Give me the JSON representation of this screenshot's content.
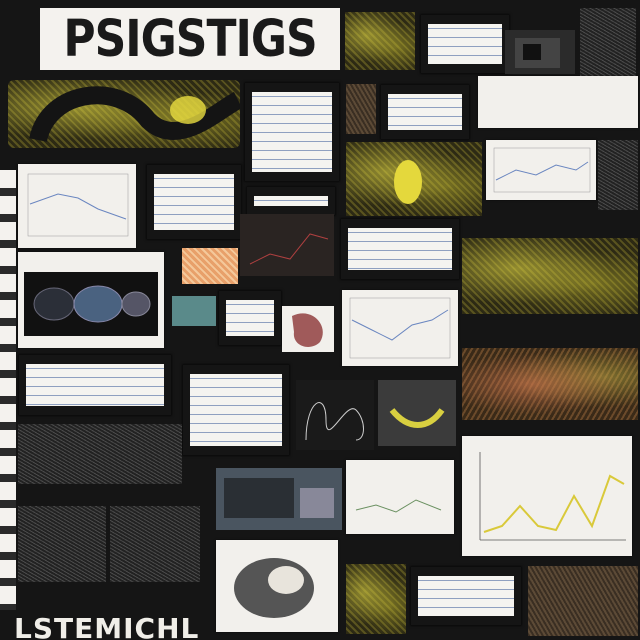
{
  "header": {
    "title": "PSIGSTIGS"
  },
  "footer": {
    "text": "LSTEMICHL"
  },
  "main_chart": {
    "title": "",
    "series": [
      {
        "color": "#d9c93a"
      }
    ]
  },
  "colors": {
    "background": "#151515",
    "paper": "#f2f0ec",
    "tissue_yellow": "#d9c93a",
    "tissue_orange": "#c9784a",
    "chart_blue": "#6a86c0"
  }
}
